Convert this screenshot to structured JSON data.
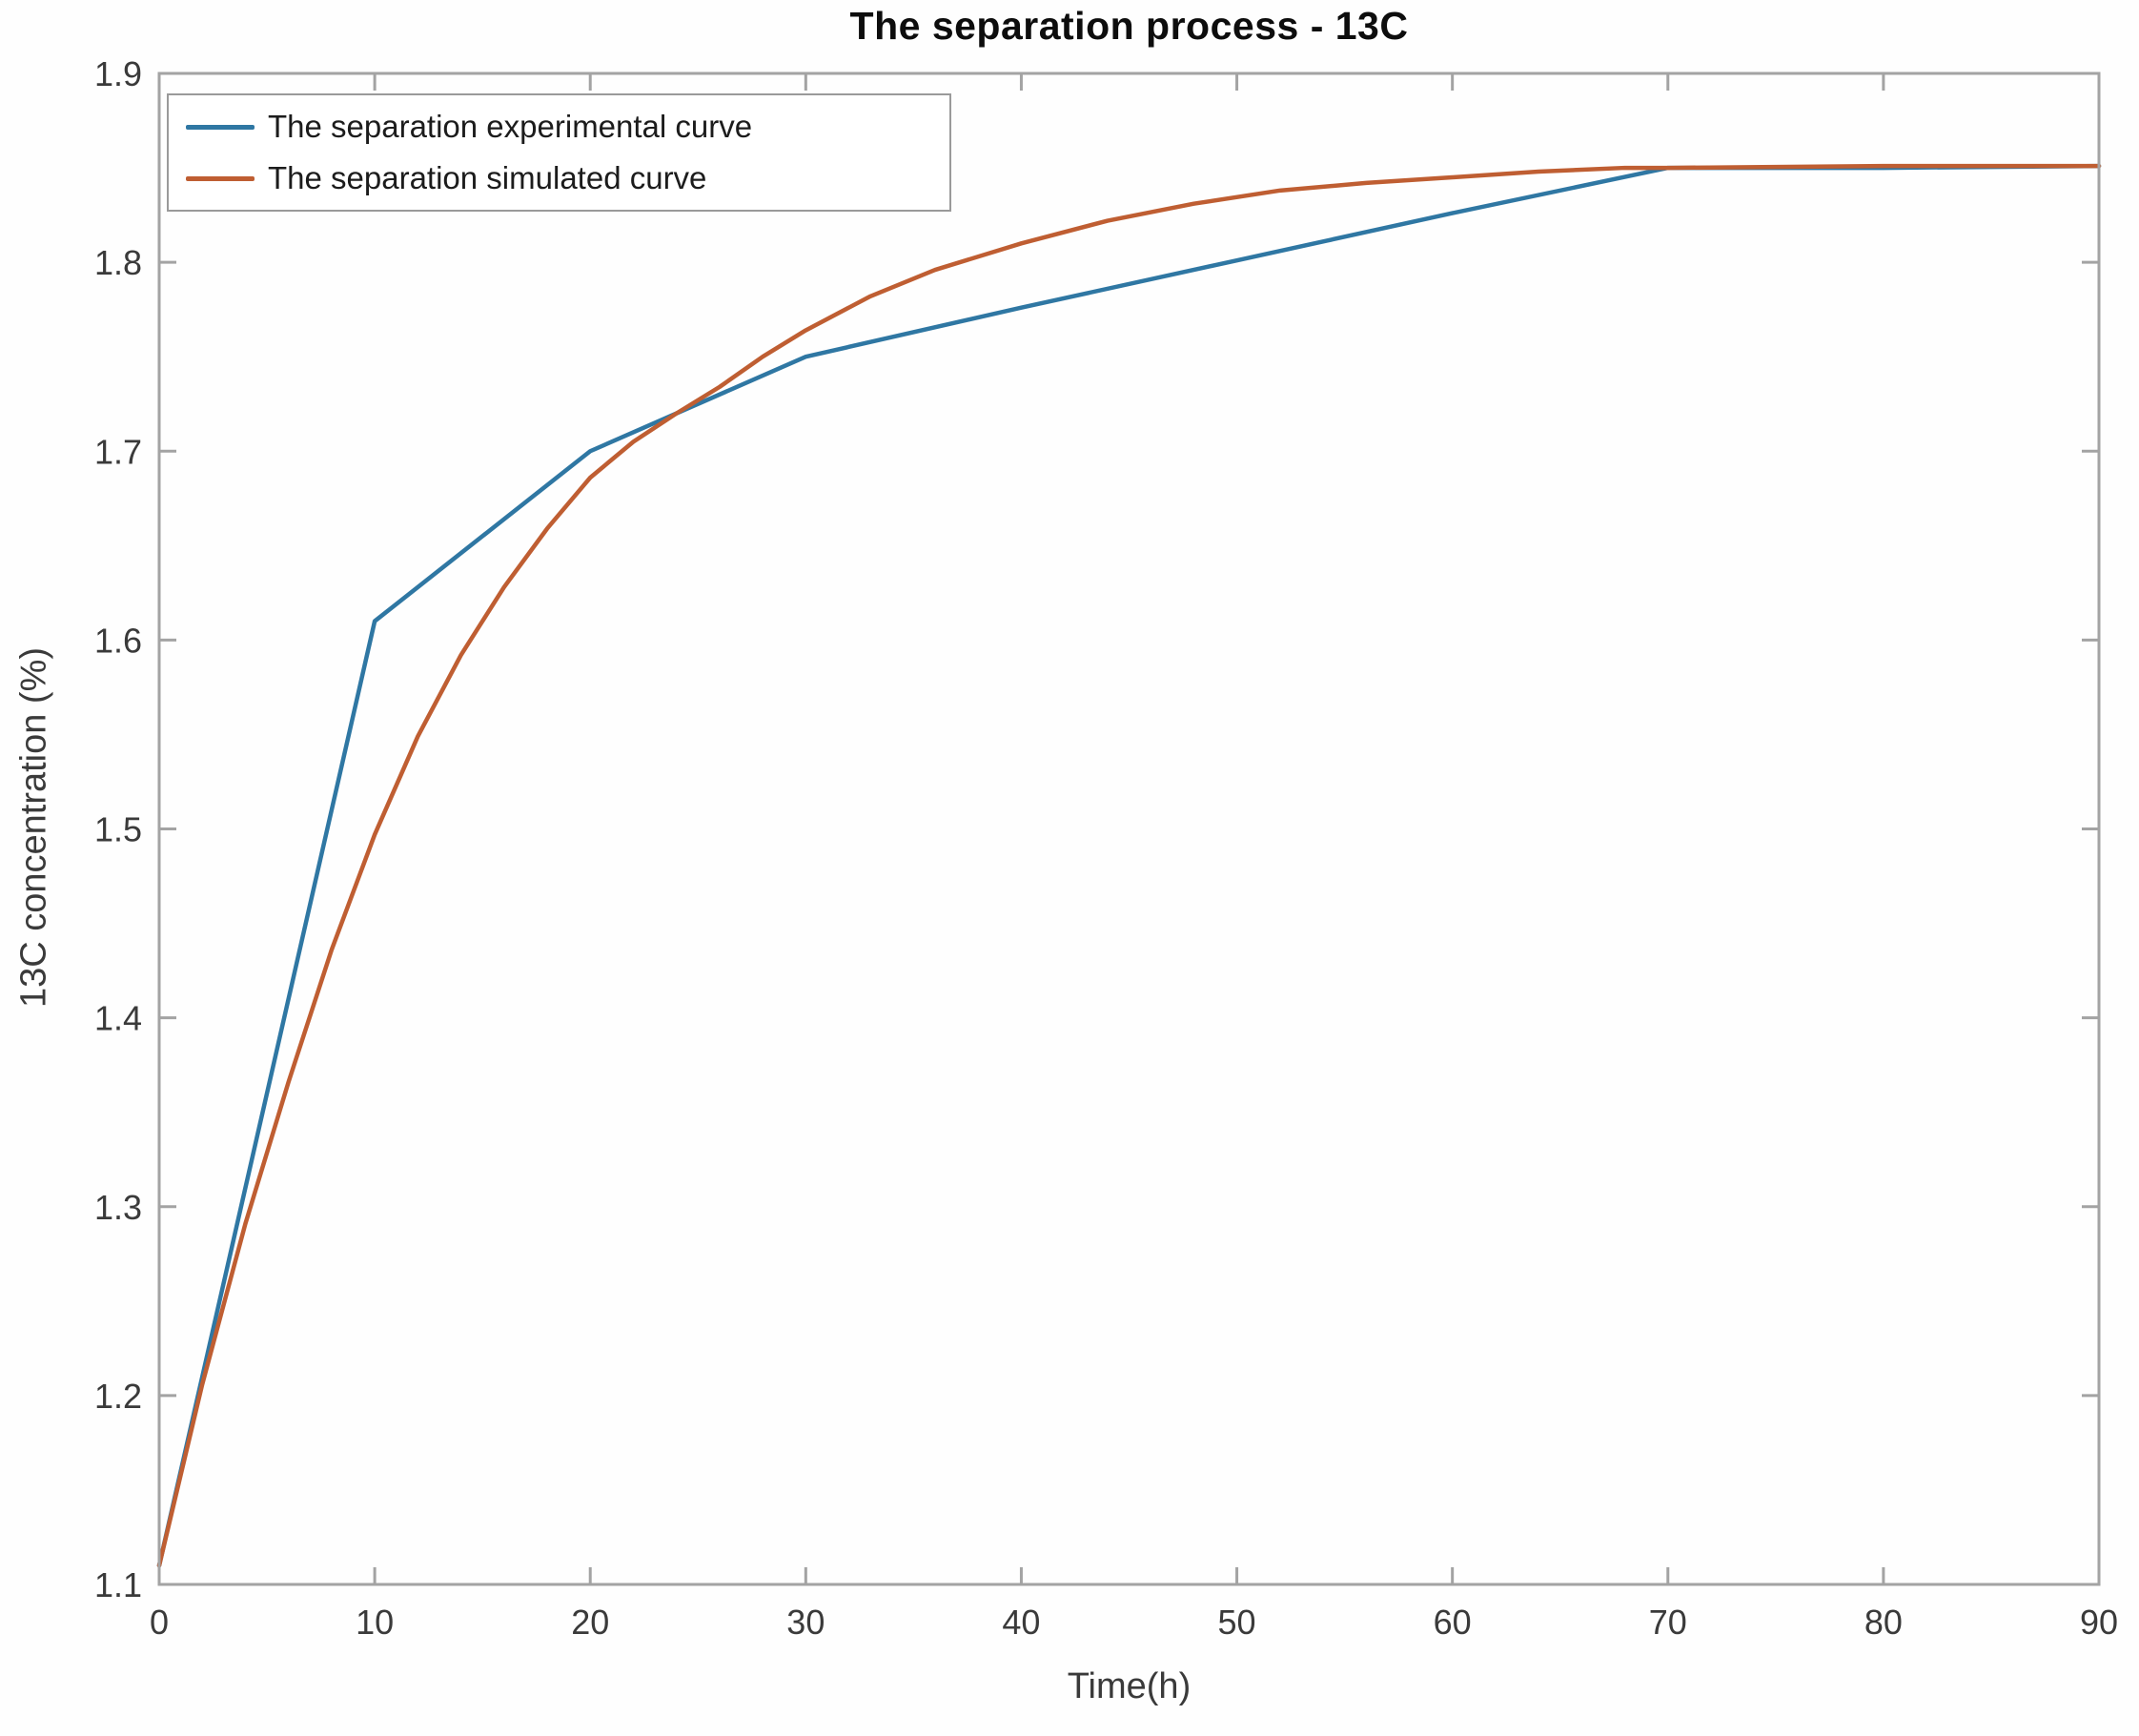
{
  "figure": {
    "title": "The separation process - 13C",
    "x_axis_label": "Time(h)",
    "y_axis_label": "13C concentration (%)"
  },
  "legend": {
    "position": "top-left",
    "entries": [
      {
        "label": "The separation experimental curve",
        "color": "#2f77a3"
      },
      {
        "label": "The separation simulated curve",
        "color": "#bf5e32"
      }
    ]
  },
  "colors": {
    "axis_box": "#a3a3a3",
    "tick_label": "#3a3a3a",
    "title": "#0d0d0d",
    "background": "#fefefe",
    "experimental_line": "#2f77a3",
    "simulated_line": "#bf5e32"
  },
  "chart_data": {
    "type": "line",
    "title": "The separation process - 13C",
    "xlabel": "Time(h)",
    "ylabel": "13C concentration (%)",
    "xlim": [
      0,
      90
    ],
    "ylim": [
      1.1,
      1.9
    ],
    "x_ticks": [
      0,
      10,
      20,
      30,
      40,
      50,
      60,
      70,
      80,
      90
    ],
    "y_ticks": [
      1.1,
      1.2,
      1.3,
      1.4,
      1.5,
      1.6,
      1.7,
      1.8,
      1.9
    ],
    "grid": false,
    "legend_position": "top-left",
    "series": [
      {
        "name": "The separation experimental curve",
        "color": "#2f77a3",
        "points": [
          [
            0,
            1.11
          ],
          [
            10,
            1.61
          ],
          [
            20,
            1.7
          ],
          [
            30,
            1.75
          ],
          [
            40,
            1.776
          ],
          [
            50,
            1.801
          ],
          [
            60,
            1.826
          ],
          [
            70,
            1.85
          ],
          [
            80,
            1.85
          ],
          [
            90,
            1.851
          ]
        ]
      },
      {
        "name": "The separation simulated curve",
        "color": "#bf5e32",
        "points": [
          [
            0,
            1.11
          ],
          [
            2,
            1.206
          ],
          [
            4,
            1.291
          ],
          [
            6,
            1.366
          ],
          [
            8,
            1.436
          ],
          [
            10,
            1.497
          ],
          [
            12,
            1.549
          ],
          [
            14,
            1.592
          ],
          [
            16,
            1.628
          ],
          [
            18,
            1.659
          ],
          [
            20,
            1.686
          ],
          [
            22,
            1.705
          ],
          [
            24,
            1.72
          ],
          [
            26,
            1.734
          ],
          [
            28,
            1.75
          ],
          [
            30,
            1.764
          ],
          [
            33,
            1.782
          ],
          [
            36,
            1.796
          ],
          [
            40,
            1.81
          ],
          [
            44,
            1.822
          ],
          [
            48,
            1.831
          ],
          [
            52,
            1.838
          ],
          [
            56,
            1.842
          ],
          [
            60,
            1.845
          ],
          [
            64,
            1.848
          ],
          [
            68,
            1.85
          ],
          [
            70,
            1.85
          ],
          [
            80,
            1.851
          ],
          [
            90,
            1.851
          ]
        ]
      }
    ]
  }
}
